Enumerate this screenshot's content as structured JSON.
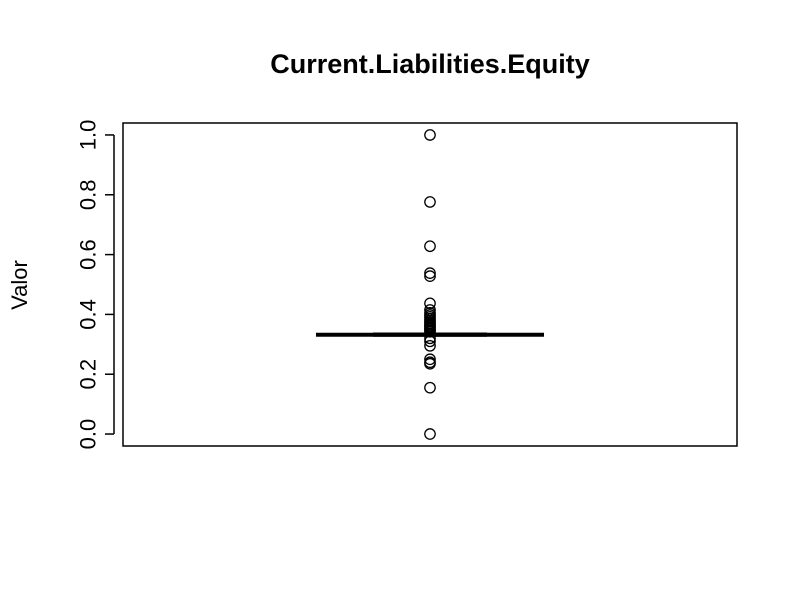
{
  "chart_data": {
    "type": "boxplot",
    "title": "Current.Liabilities.Equity",
    "xlabel": "",
    "ylabel": "Valor",
    "ylim": [
      -0.04,
      1.04
    ],
    "y_ticks": [
      0.0,
      0.2,
      0.4,
      0.6,
      0.8,
      1.0
    ],
    "y_tick_labels": [
      "0.0",
      "0.2",
      "0.4",
      "0.6",
      "0.8",
      "1.0"
    ],
    "grid": false,
    "box": {
      "min": 0.328,
      "q1": 0.331,
      "median": 0.332,
      "q3": 0.334,
      "max": 0.337
    },
    "outliers": [
      1.0,
      0.776,
      0.628,
      0.538,
      0.528,
      0.437,
      0.415,
      0.405,
      0.398,
      0.392,
      0.386,
      0.38,
      0.375,
      0.37,
      0.366,
      0.362,
      0.358,
      0.354,
      0.35,
      0.346,
      0.342,
      0.32,
      0.31,
      0.295,
      0.25,
      0.24,
      0.235,
      0.155,
      0.0
    ]
  }
}
